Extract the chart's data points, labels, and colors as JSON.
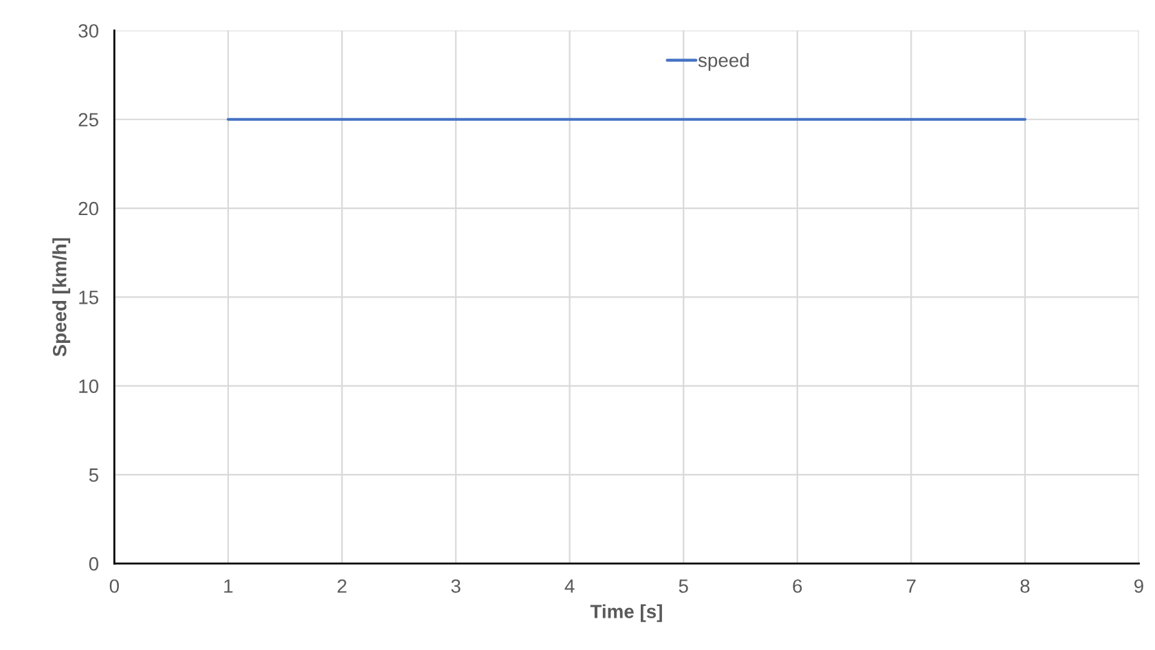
{
  "chart_data": {
    "type": "line",
    "xlabel": "Time [s]",
    "ylabel": "Speed [km/h]",
    "x": [
      1,
      8
    ],
    "series": [
      {
        "name": "speed",
        "color": "#4472c4",
        "values": [
          25,
          25
        ]
      }
    ],
    "xlim": [
      0,
      9
    ],
    "xticks": [
      0,
      1,
      2,
      3,
      4,
      5,
      6,
      7,
      8,
      9
    ],
    "ylim": [
      0,
      30
    ],
    "yticks": [
      0,
      5,
      10,
      15,
      20,
      25,
      30
    ],
    "grid": true,
    "legend": "top",
    "marker": "none",
    "line_style": "solid"
  }
}
